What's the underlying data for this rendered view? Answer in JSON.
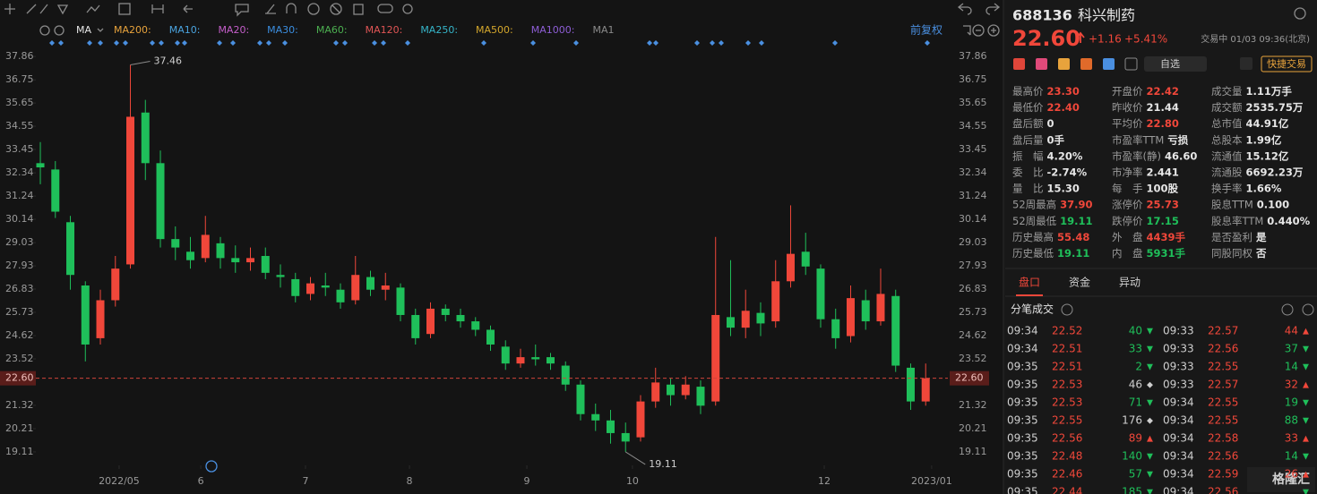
{
  "chart_data": {
    "type": "candlestick",
    "open": [
      32.8,
      32.5,
      30,
      27,
      24.5,
      26.3,
      28,
      35.2,
      32.8,
      29.2,
      28.6,
      28.3,
      29,
      28.3,
      28.1,
      28.4,
      27.5,
      27.3,
      26.6,
      27,
      26.8,
      26.3,
      27.4,
      26.8,
      26.9,
      25.6,
      24.7,
      25.9,
      25.6,
      25.3,
      24.9,
      24.1,
      23.3,
      23.6,
      23.6,
      23.2,
      22.3,
      20.9,
      20.6,
      20,
      19.8,
      21.5,
      22.3,
      21.8,
      22.2,
      21.5,
      25.5,
      25,
      25.7,
      25.3,
      27.2,
      28.6,
      27.8,
      25.4,
      24.6,
      26.3,
      25.3,
      26.5,
      23.1,
      21.5
    ],
    "high": [
      33.8,
      32.9,
      30.3,
      27.2,
      26.8,
      28.4,
      37.46,
      35.8,
      33.4,
      29.8,
      29.3,
      30.3,
      29.3,
      28.9,
      28.8,
      28.8,
      28,
      27.6,
      27.4,
      27.6,
      27.1,
      28.4,
      27.7,
      27.6,
      27.1,
      25.9,
      26.2,
      26.1,
      25.9,
      25.5,
      25.1,
      24.4,
      24,
      24.2,
      23.8,
      23.4,
      22.5,
      21.4,
      21.1,
      20.5,
      21.8,
      23.1,
      22.6,
      22.7,
      22.5,
      29.3,
      28.2,
      26.8,
      26.2,
      28.2,
      30.8,
      29.5,
      28,
      25.9,
      27,
      26.8,
      27.8,
      26.8,
      23.3,
      23.3
    ],
    "low": [
      31.8,
      30.2,
      26.8,
      23.4,
      24.2,
      26,
      27.8,
      32,
      28.8,
      28.2,
      27.8,
      28.1,
      27.8,
      27.6,
      27.7,
      27.3,
      26.9,
      26.2,
      26.3,
      26.5,
      25.9,
      26.1,
      26.5,
      26.3,
      25.3,
      24.2,
      24.5,
      25.3,
      25,
      24.6,
      23.9,
      23,
      23.1,
      23.2,
      23,
      22,
      20.6,
      20.1,
      19.5,
      19.11,
      19.6,
      21.2,
      21.3,
      21.6,
      20.9,
      21.3,
      24.6,
      24.5,
      24.6,
      25,
      26.9,
      27.5,
      25,
      24,
      24.3,
      24.9,
      25.1,
      22.9,
      21.1,
      21.3
    ],
    "close": [
      32.6,
      30.5,
      27.5,
      24.2,
      26.3,
      27.8,
      35,
      32.8,
      29.2,
      28.8,
      28.2,
      29.4,
      28.3,
      28.1,
      28.3,
      27.6,
      27.4,
      26.5,
      27.1,
      26.9,
      26.2,
      27.5,
      26.8,
      27,
      25.6,
      24.5,
      25.9,
      25.6,
      25.3,
      24.9,
      24.2,
      23.3,
      23.6,
      23.5,
      23.3,
      22.3,
      20.9,
      20.6,
      20,
      19.6,
      21.5,
      22.4,
      21.8,
      22.3,
      21.3,
      25.6,
      25,
      25.8,
      25.2,
      27.2,
      28.5,
      27.9,
      25.4,
      24.5,
      26.4,
      25.3,
      26.6,
      23.2,
      21.5,
      22.6
    ],
    "up_color": "#f0473a",
    "down_color": "#1fbf5a",
    "xlim": [
      -0.3,
      60.48
    ],
    "xticks": [
      {
        "value": 5.25,
        "label": "2022/05"
      },
      {
        "value": 10.69,
        "label": "6"
      },
      {
        "value": 17.67,
        "label": "7"
      },
      {
        "value": 24.6,
        "label": "8"
      },
      {
        "value": 32.42,
        "label": "9"
      },
      {
        "value": 39.46,
        "label": "10"
      },
      {
        "value": 52.24,
        "label": "12"
      },
      {
        "value": 59.4,
        "label": "2023/01"
      }
    ],
    "ylim": [
      18.47,
      38.5
    ],
    "yticks": [
      37.86,
      36.75,
      35.65,
      34.55,
      33.45,
      32.34,
      31.24,
      30.14,
      29.03,
      27.93,
      26.83,
      25.73,
      24.62,
      23.52,
      21.32,
      20.21,
      19.11
    ],
    "price_line": {
      "value": 22.6,
      "label": "22.60"
    },
    "annotations": [
      {
        "x": 6,
        "value": 37.46
      },
      {
        "x": 39,
        "value": 19.11
      }
    ],
    "ma_legend": [
      {
        "name": "MA",
        "color": "#e6e6e6"
      },
      {
        "name": "MA200:",
        "color": "#e8a33c"
      },
      {
        "name": "MA10:",
        "color": "#4aa3df"
      },
      {
        "name": "MA20:",
        "color": "#c45ec9"
      },
      {
        "name": "MA30:",
        "color": "#3b8ee0"
      },
      {
        "name": "MA60:",
        "color": "#4caf50"
      },
      {
        "name": "MA120:",
        "color": "#e05555"
      },
      {
        "name": "MA250:",
        "color": "#36b5c9"
      },
      {
        "name": "MA500:",
        "color": "#d4a72c"
      },
      {
        "name": "MA1000:",
        "color": "#8e5ed6"
      },
      {
        "name": "MA1",
        "color": "#8a8a8a"
      }
    ],
    "adjust": "前复权"
  },
  "header": {
    "code": "688136",
    "name": "科兴制药",
    "price": "22.60",
    "change": "+1.16",
    "pct": "+5.41%",
    "status": "交易中 01/03 09:36(北京)",
    "watch": "自选",
    "trade": "快捷交易"
  },
  "stats": [
    [
      [
        "最高价",
        "23.30",
        "#f0473a"
      ],
      [
        "开盘价",
        "22.42",
        "#f0473a"
      ],
      [
        "成交量",
        "1.11万手",
        "#e6e6e6"
      ]
    ],
    [
      [
        "最低价",
        "22.40",
        "#f0473a"
      ],
      [
        "昨收价",
        "21.44",
        "#e6e6e6"
      ],
      [
        "成交额",
        "2535.75万",
        "#e6e6e6"
      ]
    ],
    [
      [
        "盘后额",
        "0",
        "#e6e6e6"
      ],
      [
        "平均价",
        "22.80",
        "#f0473a"
      ],
      [
        "总市值",
        "44.91亿",
        "#e6e6e6"
      ]
    ],
    [
      [
        "盘后量",
        "0手",
        "#e6e6e6"
      ],
      [
        "市盈率TTM",
        "亏损",
        "#e6e6e6"
      ],
      [
        "总股本",
        "1.99亿",
        "#e6e6e6"
      ]
    ],
    [
      [
        "振　幅",
        "4.20%",
        "#e6e6e6"
      ],
      [
        "市盈率(静)",
        "46.60",
        "#e6e6e6"
      ],
      [
        "流通值",
        "15.12亿",
        "#e6e6e6"
      ]
    ],
    [
      [
        "委　比",
        "-2.74%",
        "#e6e6e6"
      ],
      [
        "市净率",
        "2.441",
        "#e6e6e6"
      ],
      [
        "流通股",
        "6692.23万",
        "#e6e6e6"
      ]
    ],
    [
      [
        "量　比",
        "15.30",
        "#e6e6e6"
      ],
      [
        "每　手",
        "100股",
        "#e6e6e6"
      ],
      [
        "换手率",
        "1.66%",
        "#e6e6e6"
      ]
    ],
    [
      [
        "52周最高",
        "37.90",
        "#f0473a"
      ],
      [
        "涨停价",
        "25.73",
        "#f0473a"
      ],
      [
        "股息TTM",
        "0.100",
        "#e6e6e6"
      ]
    ],
    [
      [
        "52周最低",
        "19.11",
        "#1fbf5a"
      ],
      [
        "跌停价",
        "17.15",
        "#1fbf5a"
      ],
      [
        "股息率TTM",
        "0.440%",
        "#e6e6e6"
      ]
    ],
    [
      [
        "历史最高",
        "55.48",
        "#f0473a"
      ],
      [
        "外　盘",
        "4439手",
        "#f0473a"
      ],
      [
        "是否盈利",
        "是",
        "#e6e6e6"
      ]
    ],
    [
      [
        "历史最低",
        "19.11",
        "#1fbf5a"
      ],
      [
        "内　盘",
        "5931手",
        "#1fbf5a"
      ],
      [
        "同股同权",
        "否",
        "#e6e6e6"
      ]
    ]
  ],
  "tabs": [
    "盘口",
    "资金",
    "异动"
  ],
  "trades_title": "分笔成交",
  "trades_left": [
    [
      "09:34",
      "22.52",
      "40",
      "▼"
    ],
    [
      "09:34",
      "22.51",
      "33",
      "▼"
    ],
    [
      "09:35",
      "22.51",
      "2",
      "▼"
    ],
    [
      "09:35",
      "22.53",
      "46",
      "◆"
    ],
    [
      "09:35",
      "22.53",
      "71",
      "▼"
    ],
    [
      "09:35",
      "22.55",
      "176",
      "◆"
    ],
    [
      "09:35",
      "22.56",
      "89",
      "▲"
    ],
    [
      "09:35",
      "22.48",
      "140",
      "▼"
    ],
    [
      "09:35",
      "22.46",
      "57",
      "▼"
    ],
    [
      "09:35",
      "22.44",
      "185",
      "▼"
    ]
  ],
  "trades_right": [
    [
      "09:33",
      "22.57",
      "44",
      "▲"
    ],
    [
      "09:33",
      "22.56",
      "37",
      "▼"
    ],
    [
      "09:33",
      "22.55",
      "14",
      "▼"
    ],
    [
      "09:33",
      "22.57",
      "32",
      "▲"
    ],
    [
      "09:34",
      "22.55",
      "19",
      "▼"
    ],
    [
      "09:34",
      "22.55",
      "88",
      "▼"
    ],
    [
      "09:34",
      "22.58",
      "33",
      "▲"
    ],
    [
      "09:34",
      "22.56",
      "14",
      "▼"
    ],
    [
      "09:34",
      "22.59",
      "26",
      "▲"
    ],
    [
      "09:34",
      "22.56",
      "",
      "▼"
    ]
  ],
  "watermark": "格隆汇"
}
